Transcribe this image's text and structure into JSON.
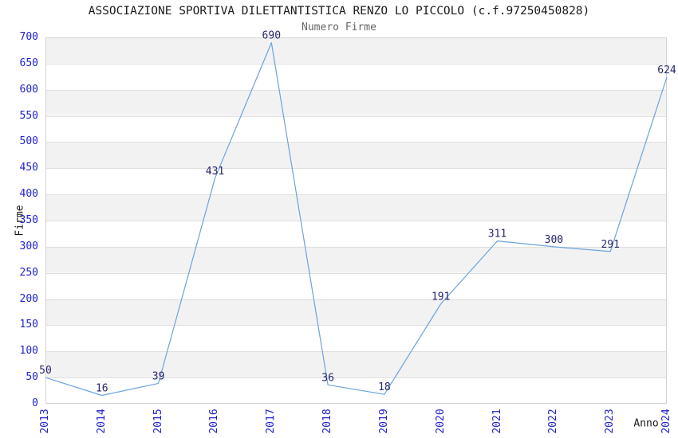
{
  "chart_data": {
    "type": "line",
    "title": "ASSOCIAZIONE SPORTIVA DILETTANTISTICA RENZO LO PICCOLO (c.f.97250450828)",
    "subtitle": "Numero Firme",
    "xlabel": "Anno",
    "ylabel": "Firme",
    "categories": [
      "2013",
      "2014",
      "2015",
      "2016",
      "2017",
      "2018",
      "2019",
      "2020",
      "2021",
      "2022",
      "2023",
      "2024"
    ],
    "values": [
      50,
      16,
      39,
      431,
      690,
      36,
      18,
      191,
      311,
      300,
      291,
      624
    ],
    "ylim": [
      0,
      700
    ],
    "ytick_step": 50,
    "grid": true,
    "legend": "none",
    "band_fill": "striped-horizontal",
    "colors": {
      "line": "#6BA3DC",
      "tick_labels": "#2222CC",
      "point_labels": "#26266D",
      "band_gray": "#F2F2F2",
      "gridline": "#E0E0E0",
      "plot_border": "#D3D3D3",
      "title": "#1A1A1A",
      "subtitle": "#666666"
    }
  }
}
